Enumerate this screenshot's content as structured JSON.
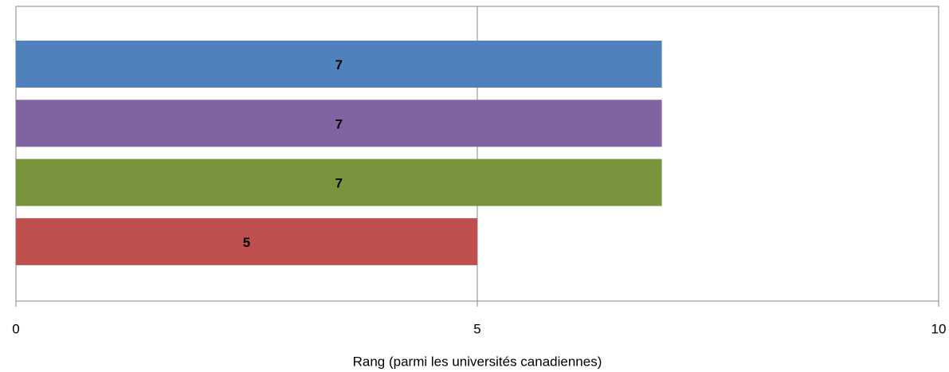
{
  "chart_data": {
    "type": "barh",
    "x_label": "Rang (parmi les universités canadiennes)",
    "categories": [
      null,
      null,
      null,
      null
    ],
    "values": [
      7,
      7,
      7,
      5
    ],
    "colors": [
      "#4f81bd",
      "#8064a2",
      "#77933c",
      "#c0504d"
    ],
    "xlim": [
      0,
      10
    ],
    "xticks": [
      0,
      5,
      10
    ],
    "grid": true
  }
}
